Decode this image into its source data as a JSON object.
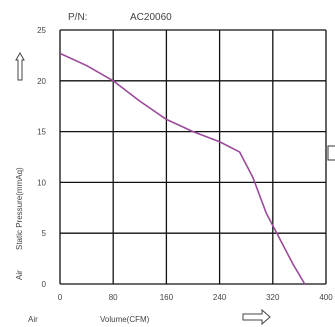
{
  "header": {
    "pn_label": "P/N:",
    "part_number": "AC20060"
  },
  "chart_data": {
    "type": "line",
    "title": "",
    "xlabel": "Volume(CFM)",
    "ylabel": "Static Pressure(mmAq)",
    "xlim": [
      0,
      400
    ],
    "ylim": [
      0,
      25
    ],
    "x_ticks": [
      "0",
      "80",
      "160",
      "240",
      "320",
      "400"
    ],
    "y_ticks": [
      "0",
      "5",
      "10",
      "15",
      "20",
      "25"
    ],
    "grid": true,
    "legend": "none",
    "series": [
      {
        "color": "#9b4a9b",
        "x": [
          0,
          40,
          80,
          120,
          160,
          200,
          240,
          270,
          290,
          310,
          330,
          350,
          368
        ],
        "y": [
          22.7,
          21.5,
          20.0,
          18.0,
          16.2,
          15.0,
          14.0,
          13.0,
          10.5,
          7.0,
          4.5,
          2.0,
          0
        ]
      }
    ]
  },
  "labels": {
    "air_left": "Air",
    "air_bottom": "Air"
  }
}
